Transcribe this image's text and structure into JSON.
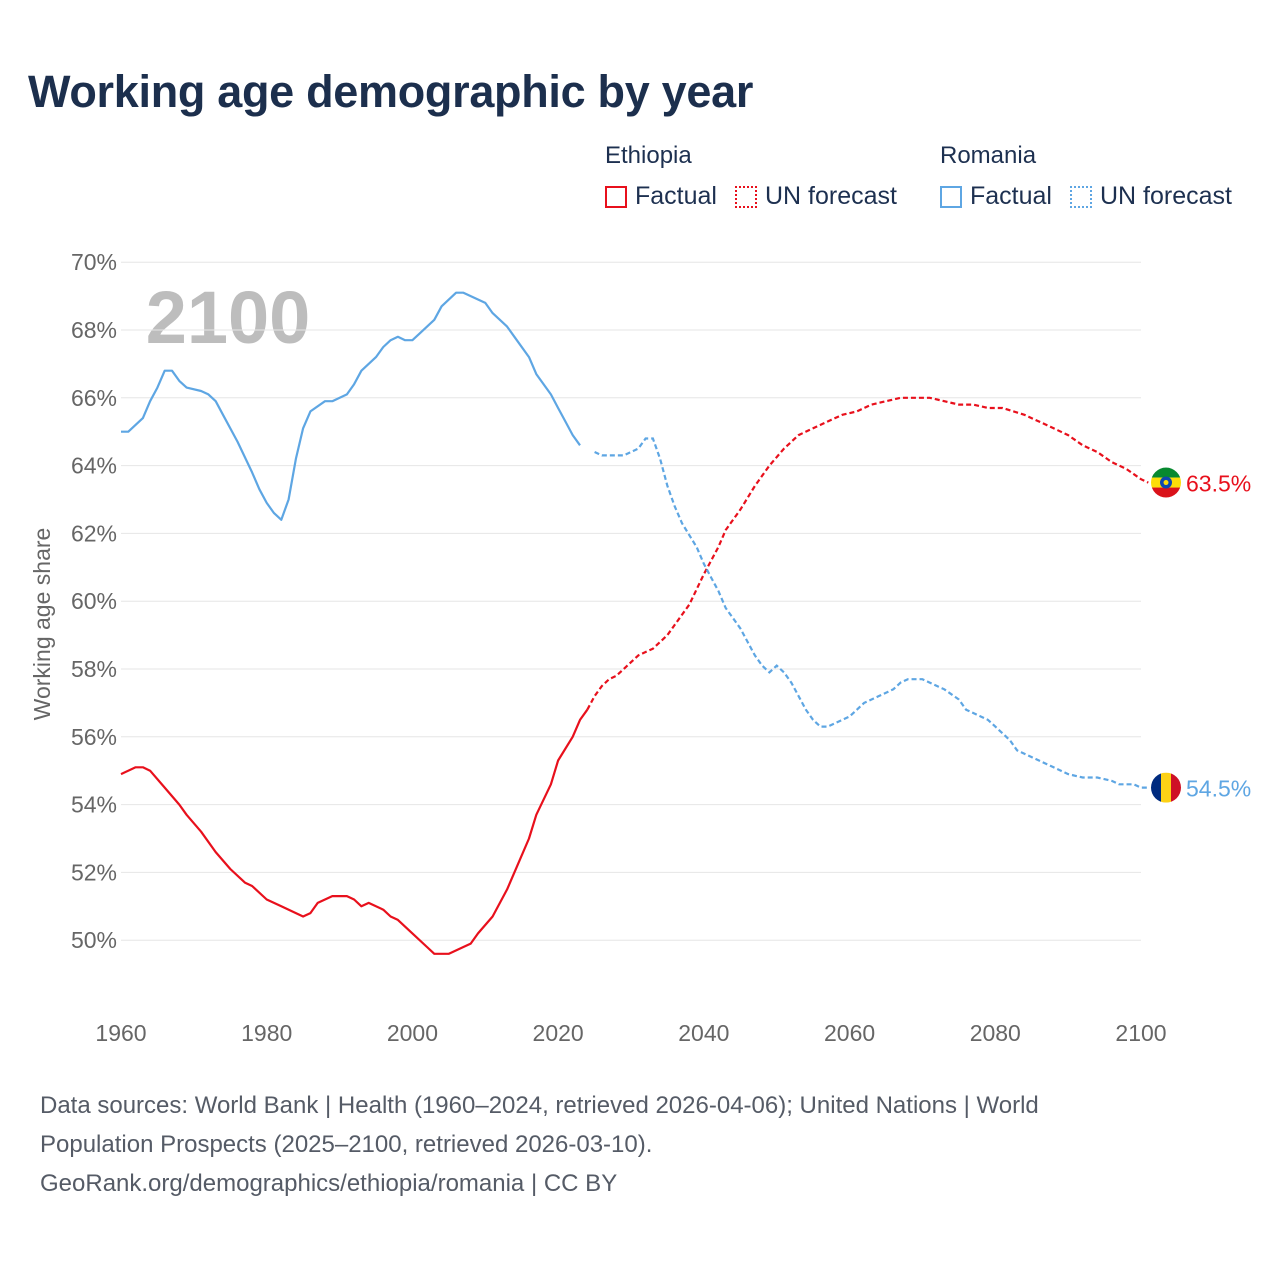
{
  "title": "Working age demographic by year",
  "legend": [
    {
      "country": "Ethiopia",
      "factual_label": "Factual",
      "forecast_label": "UN forecast",
      "color": "#e8101c"
    },
    {
      "country": "Romania",
      "factual_label": "Factual",
      "forecast_label": "UN forecast",
      "color": "#5ea6e3"
    }
  ],
  "year_overlay": "2100",
  "footer": {
    "line1": "Data sources: World Bank | Health (1960–2024, retrieved 2026-04-06); United Nations | World",
    "line2": "Population Prospects (2025–2100, retrieved 2026-03-10).",
    "line3": "GeoRank.org/demographics/ethiopia/romania | CC BY"
  },
  "chart_data": {
    "type": "line",
    "ylabel": "Working age share",
    "xlabel": "",
    "xlim": [
      1960,
      2100
    ],
    "ylim": [
      48.0,
      70.0
    ],
    "x_ticks": [
      "1960",
      "1980",
      "2000",
      "2020",
      "2040",
      "2060",
      "2080",
      "2100"
    ],
    "y_ticks": [
      "50%",
      "52%",
      "54%",
      "56%",
      "58%",
      "60%",
      "62%",
      "64%",
      "66%",
      "68%",
      "70%"
    ],
    "grid": true,
    "forecast_start_year": 2024,
    "series": [
      {
        "name": "Ethiopia",
        "color": "#e8101c",
        "end_label": "63.5%",
        "flag": "ethiopia-flag",
        "points": [
          [
            1960,
            54.9
          ],
          [
            1962,
            55.1
          ],
          [
            1963,
            55.1
          ],
          [
            1964,
            55.0
          ],
          [
            1966,
            54.5
          ],
          [
            1968,
            54.0
          ],
          [
            1969,
            53.7
          ],
          [
            1971,
            53.2
          ],
          [
            1973,
            52.6
          ],
          [
            1975,
            52.1
          ],
          [
            1977,
            51.7
          ],
          [
            1978,
            51.6
          ],
          [
            1980,
            51.2
          ],
          [
            1982,
            51.0
          ],
          [
            1984,
            50.8
          ],
          [
            1985,
            50.7
          ],
          [
            1986,
            50.8
          ],
          [
            1987,
            51.1
          ],
          [
            1989,
            51.3
          ],
          [
            1991,
            51.3
          ],
          [
            1992,
            51.2
          ],
          [
            1993,
            51.0
          ],
          [
            1994,
            51.1
          ],
          [
            1996,
            50.9
          ],
          [
            1997,
            50.7
          ],
          [
            1998,
            50.6
          ],
          [
            2000,
            50.2
          ],
          [
            2002,
            49.8
          ],
          [
            2003,
            49.6
          ],
          [
            2005,
            49.6
          ],
          [
            2007,
            49.8
          ],
          [
            2008,
            49.9
          ],
          [
            2009,
            50.2
          ],
          [
            2011,
            50.7
          ],
          [
            2013,
            51.5
          ],
          [
            2014,
            52.0
          ],
          [
            2016,
            53.0
          ],
          [
            2017,
            53.7
          ],
          [
            2019,
            54.6
          ],
          [
            2020,
            55.3
          ],
          [
            2022,
            56.0
          ],
          [
            2023,
            56.5
          ],
          [
            2024,
            56.8
          ],
          [
            2025,
            57.2
          ],
          [
            2026,
            57.5
          ],
          [
            2027,
            57.7
          ],
          [
            2028,
            57.8
          ],
          [
            2030,
            58.2
          ],
          [
            2031,
            58.4
          ],
          [
            2033,
            58.6
          ],
          [
            2035,
            59.0
          ],
          [
            2036,
            59.3
          ],
          [
            2038,
            59.9
          ],
          [
            2040,
            60.8
          ],
          [
            2042,
            61.6
          ],
          [
            2043,
            62.1
          ],
          [
            2045,
            62.7
          ],
          [
            2047,
            63.4
          ],
          [
            2049,
            64.0
          ],
          [
            2051,
            64.5
          ],
          [
            2053,
            64.9
          ],
          [
            2055,
            65.1
          ],
          [
            2057,
            65.3
          ],
          [
            2059,
            65.5
          ],
          [
            2061,
            65.6
          ],
          [
            2063,
            65.8
          ],
          [
            2065,
            65.9
          ],
          [
            2067,
            66.0
          ],
          [
            2071,
            66.0
          ],
          [
            2073,
            65.9
          ],
          [
            2075,
            65.8
          ],
          [
            2077,
            65.8
          ],
          [
            2079,
            65.7
          ],
          [
            2081,
            65.7
          ],
          [
            2084,
            65.5
          ],
          [
            2086,
            65.3
          ],
          [
            2088,
            65.1
          ],
          [
            2090,
            64.9
          ],
          [
            2092,
            64.6
          ],
          [
            2094,
            64.4
          ],
          [
            2096,
            64.1
          ],
          [
            2098,
            63.9
          ],
          [
            2100,
            63.6
          ],
          [
            2101,
            63.5
          ]
        ]
      },
      {
        "name": "Romania",
        "color": "#5ea6e3",
        "end_label": "54.5%",
        "flag": "romania-flag",
        "points": [
          [
            1960,
            65.0
          ],
          [
            1961,
            65.0
          ],
          [
            1963,
            65.4
          ],
          [
            1964,
            65.9
          ],
          [
            1965,
            66.3
          ],
          [
            1966,
            66.8
          ],
          [
            1967,
            66.8
          ],
          [
            1968,
            66.5
          ],
          [
            1969,
            66.3
          ],
          [
            1971,
            66.2
          ],
          [
            1972,
            66.1
          ],
          [
            1973,
            65.9
          ],
          [
            1974,
            65.5
          ],
          [
            1976,
            64.7
          ],
          [
            1978,
            63.8
          ],
          [
            1979,
            63.3
          ],
          [
            1980,
            62.9
          ],
          [
            1981,
            62.6
          ],
          [
            1982,
            62.4
          ],
          [
            1983,
            63.0
          ],
          [
            1984,
            64.2
          ],
          [
            1985,
            65.1
          ],
          [
            1986,
            65.6
          ],
          [
            1988,
            65.9
          ],
          [
            1989,
            65.9
          ],
          [
            1991,
            66.1
          ],
          [
            1992,
            66.4
          ],
          [
            1993,
            66.8
          ],
          [
            1995,
            67.2
          ],
          [
            1996,
            67.5
          ],
          [
            1997,
            67.7
          ],
          [
            1998,
            67.8
          ],
          [
            1999,
            67.7
          ],
          [
            2000,
            67.7
          ],
          [
            2001,
            67.9
          ],
          [
            2003,
            68.3
          ],
          [
            2004,
            68.7
          ],
          [
            2006,
            69.1
          ],
          [
            2007,
            69.1
          ],
          [
            2008,
            69.0
          ],
          [
            2010,
            68.8
          ],
          [
            2011,
            68.5
          ],
          [
            2013,
            68.1
          ],
          [
            2014,
            67.8
          ],
          [
            2016,
            67.2
          ],
          [
            2017,
            66.7
          ],
          [
            2019,
            66.1
          ],
          [
            2020,
            65.7
          ],
          [
            2021,
            65.3
          ],
          [
            2022,
            64.9
          ],
          [
            2023,
            64.6
          ],
          [
            2025,
            64.4
          ],
          [
            2026,
            64.3
          ],
          [
            2028,
            64.3
          ],
          [
            2029,
            64.3
          ],
          [
            2030,
            64.4
          ],
          [
            2031,
            64.5
          ],
          [
            2032,
            64.8
          ],
          [
            2033,
            64.8
          ],
          [
            2034,
            64.2
          ],
          [
            2035,
            63.4
          ],
          [
            2036,
            62.8
          ],
          [
            2037,
            62.3
          ],
          [
            2039,
            61.6
          ],
          [
            2040,
            61.1
          ],
          [
            2041,
            60.7
          ],
          [
            2042,
            60.3
          ],
          [
            2043,
            59.8
          ],
          [
            2045,
            59.2
          ],
          [
            2046,
            58.8
          ],
          [
            2047,
            58.4
          ],
          [
            2048,
            58.1
          ],
          [
            2049,
            57.9
          ],
          [
            2050,
            58.1
          ],
          [
            2051,
            57.9
          ],
          [
            2052,
            57.6
          ],
          [
            2053,
            57.2
          ],
          [
            2054,
            56.8
          ],
          [
            2055,
            56.5
          ],
          [
            2056,
            56.3
          ],
          [
            2057,
            56.3
          ],
          [
            2059,
            56.5
          ],
          [
            2060,
            56.6
          ],
          [
            2061,
            56.8
          ],
          [
            2062,
            57.0
          ],
          [
            2064,
            57.2
          ],
          [
            2065,
            57.3
          ],
          [
            2066,
            57.4
          ],
          [
            2067,
            57.6
          ],
          [
            2068,
            57.7
          ],
          [
            2070,
            57.7
          ],
          [
            2072,
            57.5
          ],
          [
            2073,
            57.4
          ],
          [
            2075,
            57.1
          ],
          [
            2076,
            56.8
          ],
          [
            2078,
            56.6
          ],
          [
            2079,
            56.5
          ],
          [
            2080,
            56.3
          ],
          [
            2081,
            56.1
          ],
          [
            2082,
            55.9
          ],
          [
            2083,
            55.6
          ],
          [
            2085,
            55.4
          ],
          [
            2086,
            55.3
          ],
          [
            2088,
            55.1
          ],
          [
            2090,
            54.9
          ],
          [
            2092,
            54.8
          ],
          [
            2094,
            54.8
          ],
          [
            2096,
            54.7
          ],
          [
            2097,
            54.6
          ],
          [
            2099,
            54.6
          ],
          [
            2100,
            54.5
          ],
          [
            2101,
            54.5
          ]
        ]
      }
    ]
  }
}
